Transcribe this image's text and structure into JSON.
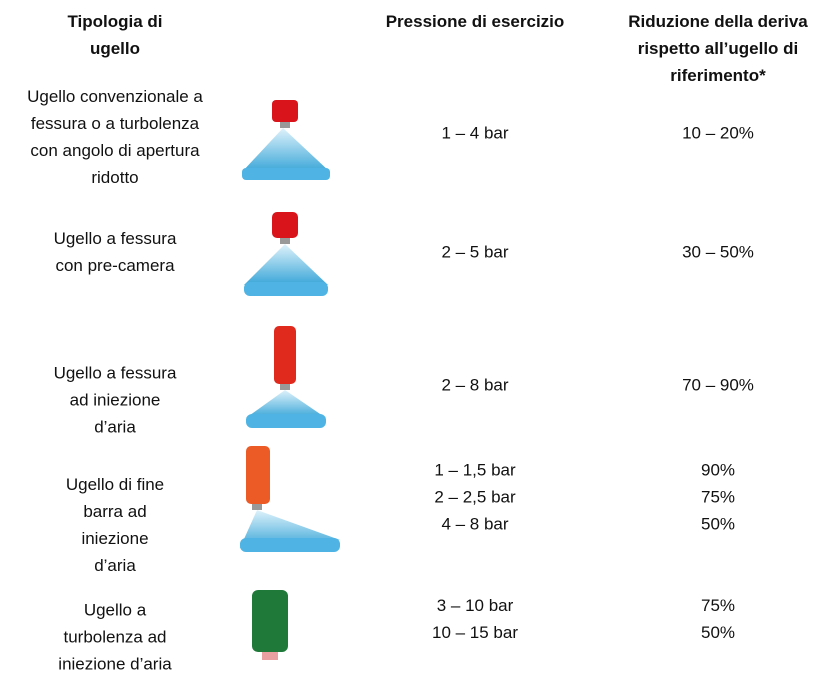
{
  "header": {
    "type": [
      "Tipologia di",
      "ugello"
    ],
    "pressure": [
      "Pressione di esercizio"
    ],
    "reduction": [
      "Riduzione della deriva",
      "rispetto all’ugello di",
      "riferimento*"
    ]
  },
  "rows": [
    {
      "type": [
        "Ugello convenzionale a",
        "fessura o a turbolenza",
        "con angolo di apertura",
        "ridotto"
      ],
      "pressure": [
        "1 – 4 bar"
      ],
      "reduction": [
        "10 – 20%"
      ]
    },
    {
      "type": [
        "Ugello a fessura",
        "con pre-camera"
      ],
      "pressure": [
        "2 – 5 bar"
      ],
      "reduction": [
        "30 – 50%"
      ]
    },
    {
      "type": [
        "Ugello a fessura",
        "ad iniezione",
        "d’aria"
      ],
      "pressure": [
        "2 – 8 bar"
      ],
      "reduction": [
        "70 – 90%"
      ]
    },
    {
      "type": [
        "Ugello di fine",
        "barra ad",
        "iniezione",
        "d’aria"
      ],
      "pressure": [
        "1 – 1,5 bar",
        "2 – 2,5 bar",
        "4 – 8 bar"
      ],
      "reduction": [
        "90%",
        "75%",
        "50%"
      ]
    },
    {
      "type": [
        "Ugello a",
        "turbolenza ad",
        "iniezione d’aria"
      ],
      "pressure": [
        "3 – 10 bar",
        "10 – 15 bar"
      ],
      "reduction": [
        "75%",
        "50%"
      ]
    }
  ]
}
